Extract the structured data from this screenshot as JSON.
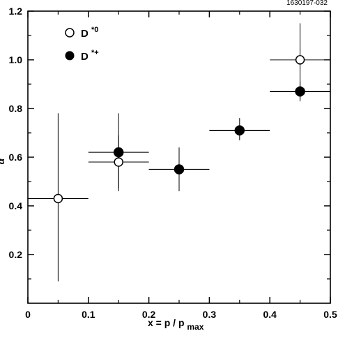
{
  "figure_id": "1630197-032",
  "chart_data": {
    "type": "scatter",
    "xlabel": "x = p / p",
    "xlabel_sub": "max",
    "ylabel": "α",
    "xlim": [
      0,
      0.5
    ],
    "ylim": [
      0,
      1.2
    ],
    "xticks": [
      0,
      0.1,
      0.2,
      0.3,
      0.4,
      0.5
    ],
    "xtick_labels": [
      "0",
      "0.1",
      "0.2",
      "0.3",
      "0.4",
      "0.5"
    ],
    "yticks": [
      0.2,
      0.4,
      0.6,
      0.8,
      1.0,
      1.2
    ],
    "ytick_labels": [
      "0.2",
      "0.4",
      "0.6",
      "0.8",
      "1.0",
      "1.2"
    ],
    "legend_position": "top-left",
    "series": [
      {
        "name": "D*0",
        "marker": "open-circle",
        "points": [
          {
            "x": 0.05,
            "y": 0.43,
            "x_low": 0.0,
            "x_high": 0.1,
            "y_low": 0.09,
            "y_high": 0.78
          },
          {
            "x": 0.15,
            "y": 0.58,
            "x_low": 0.1,
            "x_high": 0.2,
            "y_low": 0.47,
            "y_high": 0.69
          },
          {
            "x": 0.25,
            "y": 0.55,
            "x_low": 0.2,
            "x_high": 0.3,
            "y_low": 0.5,
            "y_high": 0.6
          },
          {
            "x": 0.45,
            "y": 1.0,
            "x_low": 0.4,
            "x_high": 0.5,
            "y_low": 0.84,
            "y_high": 1.15
          }
        ]
      },
      {
        "name": "D*+",
        "marker": "filled-circle",
        "points": [
          {
            "x": 0.15,
            "y": 0.62,
            "x_low": 0.1,
            "x_high": 0.2,
            "y_low": 0.46,
            "y_high": 0.78
          },
          {
            "x": 0.25,
            "y": 0.55,
            "x_low": 0.2,
            "x_high": 0.3,
            "y_low": 0.46,
            "y_high": 0.64
          },
          {
            "x": 0.35,
            "y": 0.71,
            "x_low": 0.3,
            "x_high": 0.4,
            "y_low": 0.67,
            "y_high": 0.76
          },
          {
            "x": 0.45,
            "y": 0.87,
            "x_low": 0.4,
            "x_high": 0.5,
            "y_low": 0.83,
            "y_high": 0.91
          }
        ]
      }
    ]
  },
  "legend": {
    "items": [
      {
        "marker": "open-circle",
        "base": "D",
        "sup": "*0"
      },
      {
        "marker": "filled-circle",
        "base": "D",
        "sup": "*+"
      }
    ]
  }
}
